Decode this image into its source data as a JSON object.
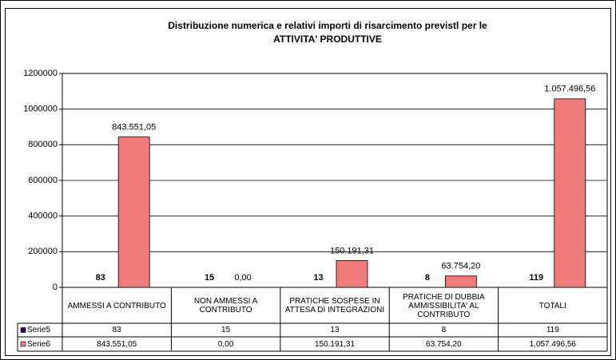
{
  "chart_data": {
    "type": "bar",
    "title": [
      "Distribuzione numerica e relativi importi di risarcimento previstl per le",
      "ATTIVITA' PRODUTTIVE"
    ],
    "categories": [
      "AMMESSI A CONTRIBUTO",
      "NON AMMESSI A CONTRIBUTO",
      "PRATICHE SOSPESE IN ATTESA DI INTEGRAZIONI",
      "PRATICHE DI DUBBIA AMMISSIBILITA' AL CONTRIBUTO",
      "TOTALI"
    ],
    "series": [
      {
        "name": "Serie5",
        "color": "#330066",
        "values": [
          83,
          15,
          13,
          8,
          119
        ]
      },
      {
        "name": "Serie6",
        "color": "#f07b7b",
        "values": [
          843551.05,
          0,
          150191.31,
          63754.2,
          1057496.56
        ],
        "value_labels": [
          "843.551,05",
          "0,00",
          "150.191,31",
          "63.754,20",
          "1.057.496,56"
        ]
      }
    ],
    "ylim": [
      0,
      1200000
    ],
    "yticks": [
      0,
      200000,
      400000,
      600000,
      800000,
      1000000,
      1200000
    ],
    "grid": true,
    "data_table": true
  }
}
